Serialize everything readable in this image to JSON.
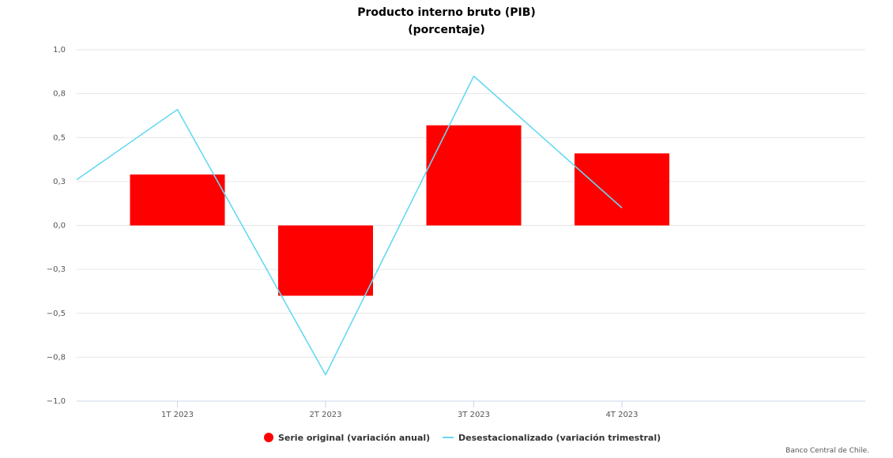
{
  "chart_data": {
    "type": "bar",
    "title": "Producto interno bruto (PIB)",
    "subtitle": "(porcentaje)",
    "categories": [
      "1T 2023",
      "2T 2023",
      "3T 2023",
      "4T 2023"
    ],
    "series": [
      {
        "name": "Serie original (variación anual)",
        "type": "bar",
        "color": "#ff0000",
        "values": [
          0.29,
          -0.4,
          0.57,
          0.41
        ]
      },
      {
        "name": "Desestacionalizado (variación trimestral)",
        "type": "line",
        "color": "#66d9f2",
        "values": [
          0.66,
          -0.85,
          0.85,
          0.1
        ]
      }
    ],
    "line_start_value": 0.26,
    "ylim": [
      -1.0,
      1.0
    ],
    "y_ticks": [
      1.0,
      0.75,
      0.5,
      0.25,
      0.0,
      -0.25,
      -0.5,
      -0.75,
      -1.0
    ],
    "y_tick_labels": [
      "1,0",
      "0,8",
      "0,5",
      "0,3",
      "0,0",
      "−0,3",
      "−0,5",
      "−0,8",
      "−1,0"
    ],
    "grid": true,
    "legend": "bottom-center",
    "xlabel": "",
    "ylabel": "",
    "credits": "Banco Central de Chile."
  }
}
